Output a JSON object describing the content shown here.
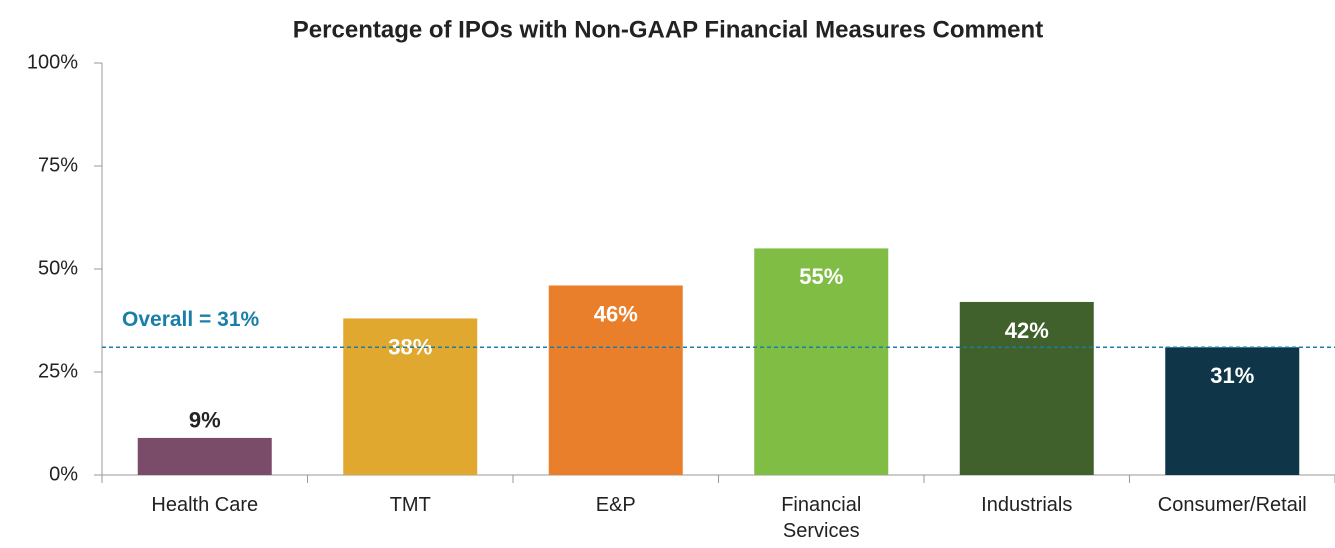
{
  "chart_data": {
    "type": "bar",
    "title": "Percentage of IPOs with Non-GAAP Financial Measures Comment",
    "categories": [
      "Health Care",
      "TMT",
      "E&P",
      "Financial Services",
      "Industrials",
      "Consumer/Retail"
    ],
    "values": [
      9,
      38,
      46,
      55,
      42,
      31
    ],
    "value_labels": [
      "9%",
      "38%",
      "46%",
      "55%",
      "42%",
      "31%"
    ],
    "colors": [
      "#7b4b6a",
      "#e0a82e",
      "#e97f2b",
      "#80bd45",
      "#40602c",
      "#0f3548"
    ],
    "ylim": [
      0,
      100
    ],
    "yticks": [
      {
        "value": 0,
        "label": "0%"
      },
      {
        "value": 25,
        "label": "25%"
      },
      {
        "value": 50,
        "label": "50%"
      },
      {
        "value": 75,
        "label": "75%"
      },
      {
        "value": 100,
        "label": "100%"
      }
    ],
    "grid": false,
    "reference_line": {
      "value": 31,
      "label": "Overall = 31%",
      "color": "#1a7fa8"
    }
  }
}
